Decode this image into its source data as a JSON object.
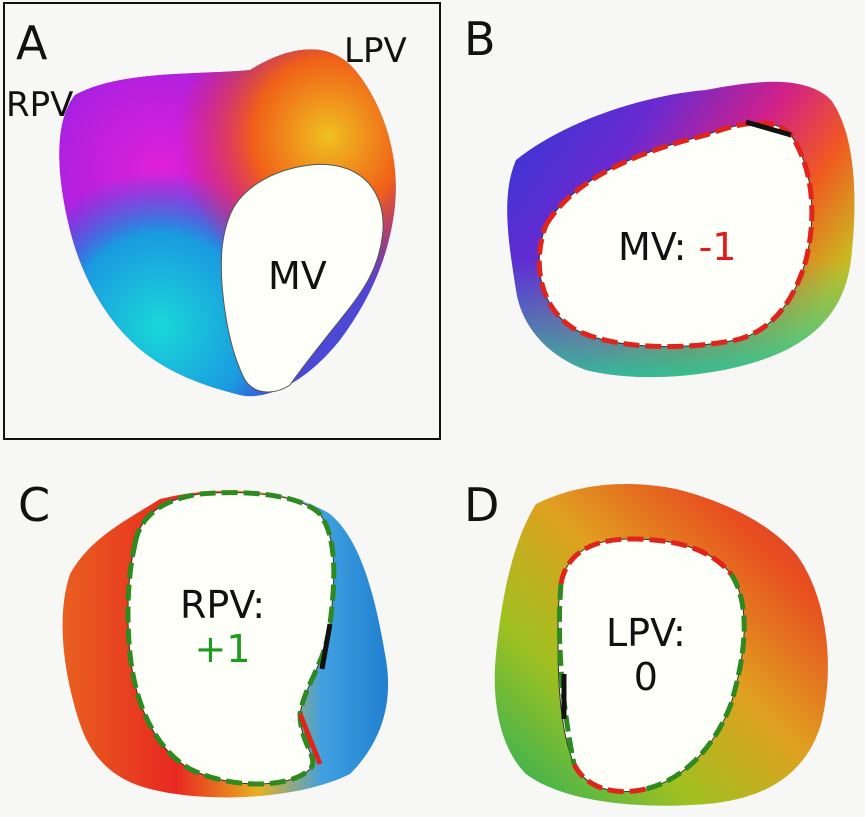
{
  "panels": {
    "a": {
      "letter": "A",
      "labels": {
        "rpv": "RPV",
        "lpv": "LPV",
        "mv": "MV"
      }
    },
    "b": {
      "letter": "B",
      "ring": "MV:",
      "index": "-1"
    },
    "c": {
      "letter": "C",
      "ring": "RPV:",
      "index": "+1"
    },
    "d": {
      "letter": "D",
      "ring": "LPV:",
      "index": "0"
    }
  },
  "colors": {
    "positive_index": "#1e9a1e",
    "negative_index": "#e01b1b",
    "arrow_red": "#e0241c",
    "arrow_green": "#2c8a1e",
    "opening": "#fffffa"
  }
}
